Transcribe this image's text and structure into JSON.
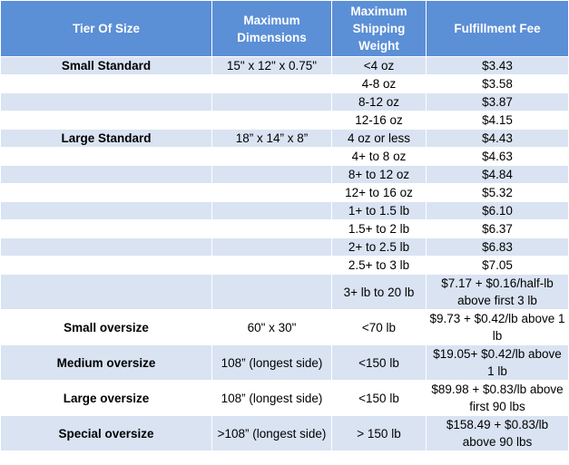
{
  "headers": [
    "Tier Of Size",
    "Maximum Dimensions",
    "Maximum Shipping Weight",
    "Fulfillment Fee"
  ],
  "rows": [
    {
      "tier": "Small Standard",
      "dims": "15\" x 12\" x 0.75\"",
      "weight": "<4 oz",
      "fee": "$3.43"
    },
    {
      "tier": "",
      "dims": "",
      "weight": "4-8 oz",
      "fee": "$3.58"
    },
    {
      "tier": "",
      "dims": "",
      "weight": "8-12 oz",
      "fee": "$3.87"
    },
    {
      "tier": "",
      "dims": "",
      "weight": "12-16 oz",
      "fee": "$4.15"
    },
    {
      "tier": "Large Standard",
      "dims": "18” x 14” x 8”",
      "weight": "4 oz or less",
      "fee": "$4.43"
    },
    {
      "tier": "",
      "dims": "",
      "weight": "4+ to 8 oz",
      "fee": "$4.63"
    },
    {
      "tier": "",
      "dims": "",
      "weight": "8+ to 12 oz",
      "fee": "$4.84"
    },
    {
      "tier": "",
      "dims": "",
      "weight": "12+ to 16 oz",
      "fee": "$5.32"
    },
    {
      "tier": "",
      "dims": "",
      "weight": "1+ to 1.5 lb",
      "fee": "$6.10"
    },
    {
      "tier": "",
      "dims": "",
      "weight": "1.5+ to 2 lb",
      "fee": "$6.37"
    },
    {
      "tier": "",
      "dims": "",
      "weight": "2+ to 2.5 lb",
      "fee": "$6.83"
    },
    {
      "tier": "",
      "dims": "",
      "weight": "2.5+ to 3 lb",
      "fee": "$7.05"
    },
    {
      "tier": "",
      "dims": "",
      "weight": "3+ lb to 20 lb",
      "fee": "$7.17 + $0.16/half-lb above first 3 lb"
    },
    {
      "tier": "Small oversize",
      "dims": "60\" x 30\"",
      "weight": "<70 lb",
      "fee": "$9.73 + $0.42/lb above 1 lb"
    },
    {
      "tier": "Medium oversize",
      "dims": "108” (longest side)",
      "weight": "<150 lb",
      "fee": "$19.05+ $0.42/lb above 1 lb"
    },
    {
      "tier": "Large oversize",
      "dims": "108” (longest side)",
      "weight": "<150 lb",
      "fee": "$89.98 + $0.83/lb above first 90 lbs"
    },
    {
      "tier": "Special oversize",
      "dims": ">108” (longest side)",
      "weight": "> 150 lb",
      "fee": "$158.49 + $0.83/lb above 90 lbs"
    }
  ]
}
